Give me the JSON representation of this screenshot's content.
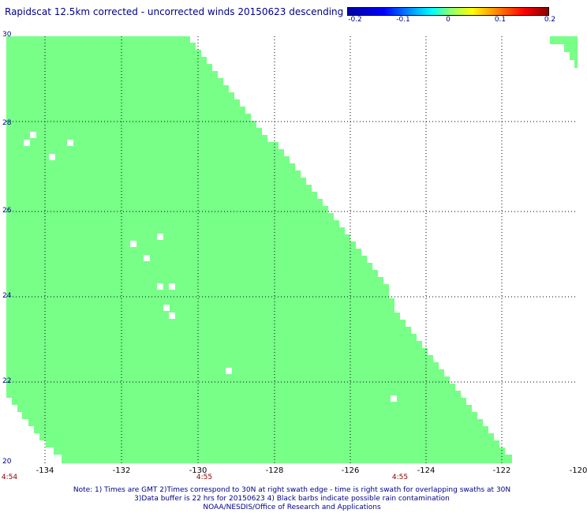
{
  "title": "Rapidscat 12.5km corrected - uncorrected winds 20150623 descending",
  "colorbar": {
    "labels": [
      "-0.2",
      "-0.1",
      "0",
      "0.1",
      "0.2"
    ],
    "min": -0.2,
    "max": 0.2
  },
  "axes": {
    "x_ticks": [
      "-134",
      "-132",
      "-130",
      "-128",
      "-126",
      "-124",
      "-122",
      "-120"
    ],
    "y_ticks": [
      "20",
      "22",
      "24",
      "26",
      "28",
      "30"
    ],
    "lon_range": [
      -134.5,
      -120
    ],
    "lat_range": [
      20,
      30
    ],
    "grid": true
  },
  "time_labels": [
    "4:54",
    "4:55",
    "4:55"
  ],
  "notes": [
    "Note: 1) Times are GMT 2)Times correspond to 30N at right swath edge - time is right swath for overlapping swaths at 30N",
    "3)Data buffer is 22 hrs for 20150623 4) Black barbs indicate possible rain contamination",
    "NOAA/NESDIS/Office of Research and Applications"
  ],
  "colors": {
    "swath_fill": "#77ff88",
    "no_data": "#ffffff",
    "text": "#000088",
    "time_text": "#8b0000"
  }
}
